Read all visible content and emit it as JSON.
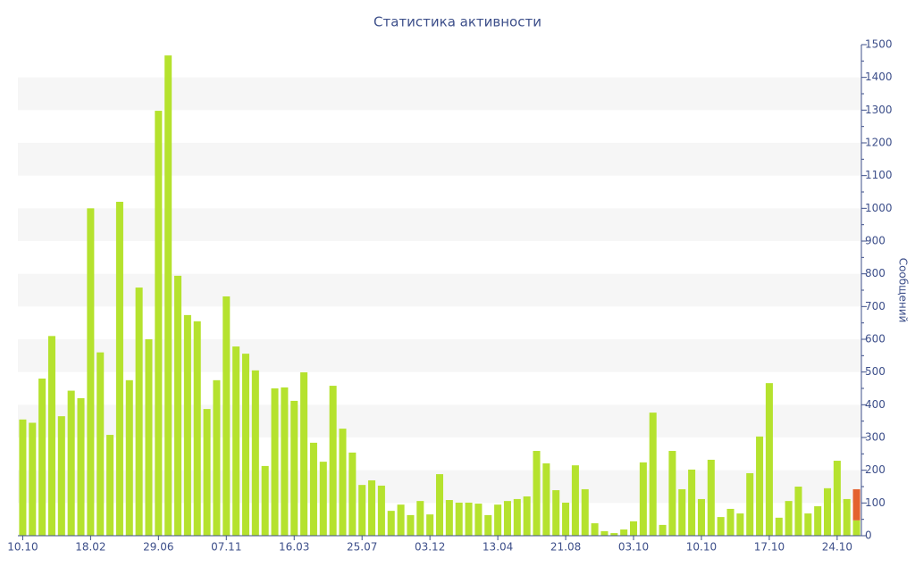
{
  "chart_data": {
    "type": "bar",
    "title": "Статистика активности",
    "y_label": "Сообщений",
    "categories": [
      "10.10",
      null,
      null,
      null,
      null,
      null,
      null,
      "18.02",
      null,
      null,
      null,
      null,
      null,
      null,
      "29.06",
      null,
      null,
      null,
      null,
      null,
      null,
      "07.11",
      null,
      null,
      null,
      null,
      null,
      null,
      "16.03",
      null,
      null,
      null,
      null,
      null,
      null,
      "25.07",
      null,
      null,
      null,
      null,
      null,
      null,
      "03.12",
      null,
      null,
      null,
      null,
      null,
      null,
      "13.04",
      null,
      null,
      null,
      null,
      null,
      null,
      "21.08",
      null,
      null,
      null,
      null,
      null,
      null,
      "03.10",
      null,
      null,
      null,
      null,
      null,
      null,
      "10.10",
      null,
      null,
      null,
      null,
      null,
      null,
      "17.10",
      null,
      null,
      null,
      null,
      null,
      null,
      "24.10",
      null,
      null
    ],
    "series": [
      {
        "color": "#b5e22e",
        "values": [
          355,
          345,
          480,
          610,
          365,
          443,
          420,
          1000,
          560,
          308,
          1020,
          475,
          758,
          600,
          1298,
          1467,
          794,
          674,
          655,
          387,
          475,
          731,
          578,
          556,
          505,
          213,
          450,
          453,
          412,
          499,
          284,
          226,
          458,
          327,
          254,
          155,
          169,
          153,
          76,
          95,
          63,
          106,
          65,
          188,
          109,
          101,
          101,
          98,
          63,
          95,
          106,
          112,
          120,
          259,
          221,
          139,
          101,
          215,
          142,
          38,
          14,
          8,
          19,
          44,
          224,
          376,
          33,
          259,
          142,
          202,
          112,
          232,
          57,
          82,
          68,
          191,
          303,
          466,
          55,
          106,
          150,
          68,
          90,
          145,
          229,
          112,
          47
        ]
      },
      {
        "color": "#e4622f",
        "values": [
          null,
          null,
          null,
          null,
          null,
          null,
          null,
          null,
          null,
          null,
          null,
          null,
          null,
          null,
          null,
          null,
          null,
          null,
          null,
          null,
          null,
          null,
          null,
          null,
          null,
          null,
          null,
          null,
          null,
          null,
          null,
          null,
          null,
          null,
          null,
          null,
          null,
          null,
          null,
          null,
          null,
          null,
          null,
          null,
          null,
          null,
          null,
          null,
          null,
          null,
          null,
          null,
          null,
          null,
          null,
          null,
          null,
          null,
          null,
          null,
          null,
          null,
          null,
          null,
          null,
          null,
          null,
          null,
          null,
          null,
          null,
          null,
          null,
          null,
          null,
          null,
          null,
          null,
          null,
          null,
          null,
          null,
          null,
          null,
          null,
          null,
          95
        ]
      }
    ],
    "stacked": true,
    "ylim": [
      0,
      1500
    ],
    "yticks": [
      0,
      100,
      200,
      300,
      400,
      500,
      600,
      700,
      800,
      900,
      1000,
      1100,
      1200,
      1300,
      1400,
      1500
    ],
    "y_axis_side": "right",
    "grid": "bands"
  }
}
